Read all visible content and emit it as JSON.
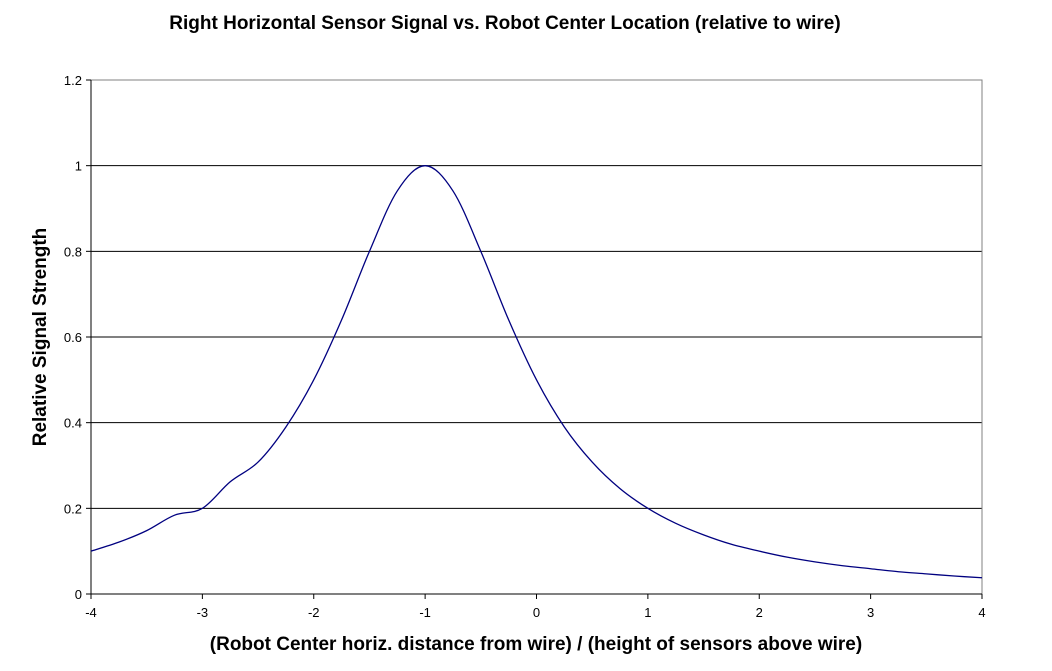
{
  "chart_data": {
    "type": "line",
    "title": "Right Horizontal Sensor Signal vs. Robot Center Location (relative to wire)",
    "xlabel": "(Robot Center horiz. distance from wire) / (height of sensors above wire)",
    "ylabel": "Relative Signal Strength",
    "xlim": [
      -4,
      4
    ],
    "ylim": [
      0,
      1.2
    ],
    "xticks": [
      "-4",
      "-3",
      "-2",
      "-1",
      "0",
      "1",
      "2",
      "3",
      "4"
    ],
    "yticks": [
      "0",
      "0.2",
      "0.4",
      "0.6",
      "0.8",
      "1",
      "1.2"
    ],
    "grid": "horizontal",
    "legend": "none",
    "series": [
      {
        "color": "#000080",
        "x": [
          -4,
          -3.75,
          -3.5,
          -3.25,
          -3,
          -2.75,
          -2.5,
          -2.25,
          -2,
          -1.75,
          -1.5,
          -1.25,
          -1,
          -0.75,
          -0.5,
          -0.25,
          0,
          0.25,
          0.5,
          0.75,
          1,
          1.25,
          1.5,
          1.75,
          2,
          2.25,
          2.5,
          2.75,
          3,
          3.25,
          3.5,
          3.75,
          4
        ],
        "y": [
          0.1,
          0.121,
          0.148,
          0.184,
          0.2,
          0.262,
          0.308,
          0.39,
          0.5,
          0.64,
          0.8,
          0.941,
          1.0,
          0.941,
          0.8,
          0.64,
          0.5,
          0.39,
          0.308,
          0.246,
          0.2,
          0.165,
          0.138,
          0.116,
          0.1,
          0.086,
          0.075,
          0.066,
          0.059,
          0.052,
          0.047,
          0.042,
          0.038
        ]
      }
    ]
  }
}
